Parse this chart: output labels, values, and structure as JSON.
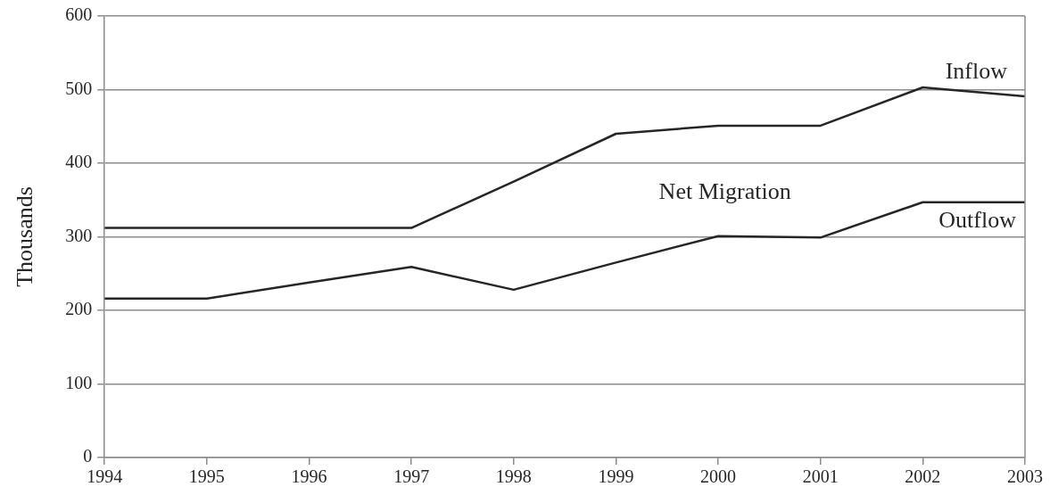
{
  "chart_data": {
    "type": "line",
    "ylabel": "Thousands",
    "x": [
      1994,
      1995,
      1996,
      1997,
      1998,
      1999,
      2000,
      2001,
      2002,
      2003
    ],
    "series": [
      {
        "name": "Inflow",
        "color": "#262626",
        "values": [
          312,
          312,
          312,
          312,
          375,
          440,
          451,
          451,
          503,
          491
        ]
      },
      {
        "name": "Outflow",
        "color": "#262626",
        "values": [
          216,
          216,
          238,
          259,
          228,
          265,
          301,
          299,
          347,
          347
        ]
      }
    ],
    "annotations": [
      "Net Migration"
    ],
    "xlim": [
      1994,
      2003
    ],
    "xticks": [
      1994,
      1995,
      1996,
      1997,
      1998,
      1999,
      2000,
      2001,
      2002,
      2003
    ],
    "ylim": [
      0,
      600
    ],
    "yticks": [
      0,
      100,
      200,
      300,
      400,
      500,
      600
    ],
    "grid": "y",
    "legend": false,
    "marker": "none",
    "line_style": "solid"
  }
}
